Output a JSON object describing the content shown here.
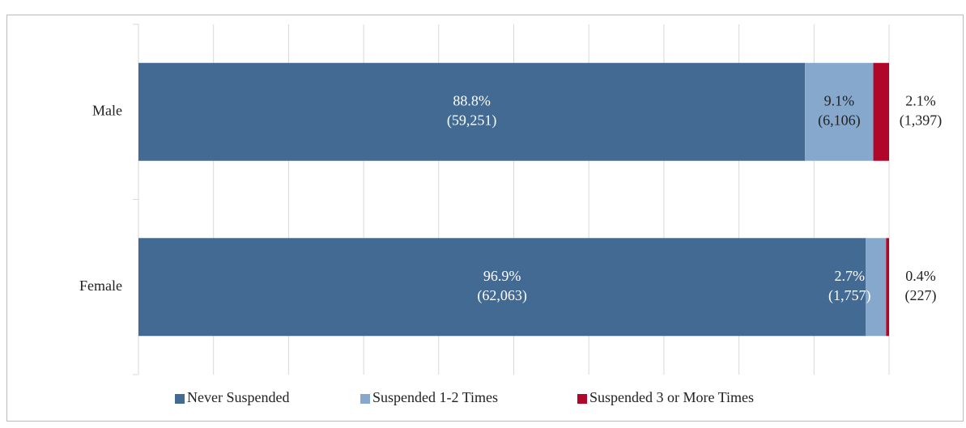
{
  "chart_data": {
    "type": "stacked_barh",
    "categories": [
      "Male",
      "Female"
    ],
    "series": [
      {
        "name": "Never Suspended",
        "color": "#426a92",
        "values": [
          88.8,
          96.9
        ],
        "value_labels": [
          "88.8%",
          "96.9%"
        ],
        "count_labels": [
          "(59,251)",
          "(62,063)"
        ]
      },
      {
        "name": "Suspended 1-2 Times",
        "color": "#86a8cc",
        "values": [
          9.1,
          2.7
        ],
        "value_labels": [
          "9.1%",
          "2.7%"
        ],
        "count_labels": [
          "(6,106)",
          "(1,757)"
        ]
      },
      {
        "name": "Suspended 3 or More Times",
        "color": "#b0062a",
        "values": [
          2.1,
          0.4
        ],
        "value_labels": [
          "2.1%",
          "0.4%"
        ],
        "count_labels": [
          "(1,397)",
          "(227)"
        ]
      }
    ],
    "xlim": [
      0,
      100
    ],
    "xticks": [
      0,
      10,
      20,
      30,
      40,
      50,
      60,
      70,
      80,
      90,
      100
    ],
    "grid": true,
    "legend": "bottom"
  }
}
